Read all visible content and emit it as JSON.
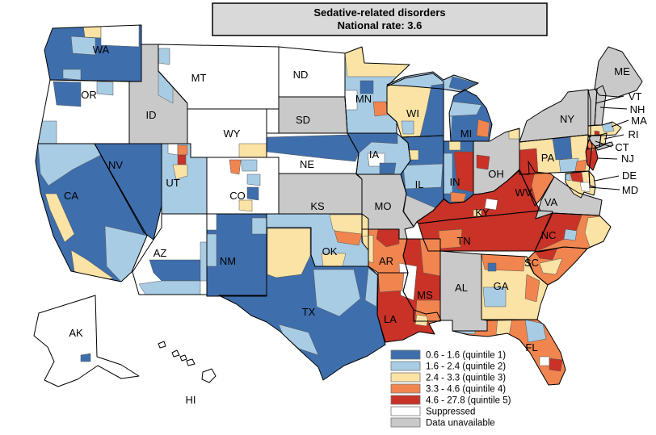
{
  "title": {
    "line1": "Sedative-related disorders",
    "line2": "National rate: 3.6"
  },
  "colors": {
    "q1": "#3F6EAC",
    "q2": "#A8CCE4",
    "q3": "#FBE3A5",
    "q4": "#F0854F",
    "q5": "#C83227",
    "suppressed": "#FFFFFF",
    "unavailable": "#C9C9C9",
    "border": "#000000",
    "title_box_bg": "#D9D9D9"
  },
  "legend": {
    "items": [
      {
        "label": "0.6 - 1.6 (quintile 1)",
        "color_key": "q1"
      },
      {
        "label": "1.6 - 2.4 (quintile 2)",
        "color_key": "q2"
      },
      {
        "label": "2.4 - 3.3 (quintile 3)",
        "color_key": "q3"
      },
      {
        "label": "3.3 - 4.6 (quintile 4)",
        "color_key": "q4"
      },
      {
        "label": "4.6 - 27.8 (quintile 5)",
        "color_key": "q5"
      },
      {
        "label": "Suppressed",
        "color_key": "suppressed"
      },
      {
        "label": "Data unavailable",
        "color_key": "unavailable"
      }
    ]
  },
  "chart_data": {
    "type": "heatmap",
    "title": "Sedative-related disorders",
    "subtitle": "National rate: 3.6",
    "national_rate": 3.6,
    "legend_position": "bottom-center",
    "bins": [
      {
        "range": "0.6 - 1.6",
        "quintile": 1
      },
      {
        "range": "1.6 - 2.4",
        "quintile": 2
      },
      {
        "range": "2.4 - 3.3",
        "quintile": 3
      },
      {
        "range": "3.3 - 4.6",
        "quintile": 4
      },
      {
        "range": "4.6 - 27.8",
        "quintile": 5
      },
      {
        "range": "Suppressed",
        "quintile": null
      },
      {
        "range": "Data unavailable",
        "quintile": null
      }
    ],
    "state_dominant_quintile": {
      "WA": "q1",
      "OR": "suppressed",
      "ID": "unavailable",
      "MT": "suppressed",
      "ND": "suppressed",
      "SD": "unavailable",
      "WY": "suppressed",
      "NE": "suppressed",
      "KS": "unavailable",
      "OK": "q2",
      "TX": "q1",
      "NM": "q1",
      "AZ": "suppressed",
      "UT": "q2",
      "CO": "suppressed",
      "NV": "q1",
      "CA": "q1",
      "MN": "q2",
      "IA": "q2",
      "MO": "unavailable",
      "AR": "q4",
      "LA": "q5",
      "WI": "q3",
      "IL": "q1",
      "MS": "q5",
      "MI": "q1",
      "IN": "q1",
      "OH": "unavailable",
      "KY": "q5",
      "TN": "q5",
      "WV": "q5",
      "VA": "unavailable",
      "NC": "q4",
      "SC": "q4",
      "GA": "q3",
      "AL": "unavailable",
      "FL": "q4",
      "NY": "unavailable",
      "PA": "q3",
      "ME": "unavailable",
      "VT": "unavailable",
      "NH": "unavailable",
      "MA": "q3",
      "RI": "q3",
      "CT": "unavailable",
      "NJ": "q5",
      "DE": "q3",
      "MD": "q3",
      "AK": "suppressed",
      "HI": "suppressed"
    }
  },
  "map": {
    "states": [
      {
        "id": "WA",
        "label": "WA",
        "quintile": "q1"
      },
      {
        "id": "OR",
        "label": "OR",
        "quintile": "suppressed"
      },
      {
        "id": "ID",
        "label": "ID",
        "quintile": "unavailable"
      },
      {
        "id": "MT",
        "label": "MT",
        "quintile": "suppressed"
      },
      {
        "id": "ND",
        "label": "ND",
        "quintile": "suppressed"
      },
      {
        "id": "SD",
        "label": "SD",
        "quintile": "unavailable"
      },
      {
        "id": "WY",
        "label": "WY",
        "quintile": "suppressed"
      },
      {
        "id": "NE",
        "label": "NE",
        "quintile": "suppressed"
      },
      {
        "id": "KS",
        "label": "KS",
        "quintile": "unavailable"
      },
      {
        "id": "OK",
        "label": "OK",
        "quintile": "q2"
      },
      {
        "id": "TX",
        "label": "TX",
        "quintile": "q1"
      },
      {
        "id": "NM",
        "label": "NM",
        "quintile": "q1"
      },
      {
        "id": "AZ",
        "label": "AZ",
        "quintile": "suppressed"
      },
      {
        "id": "UT",
        "label": "UT",
        "quintile": "q2"
      },
      {
        "id": "CO",
        "label": "CO",
        "quintile": "suppressed"
      },
      {
        "id": "NV",
        "label": "NV",
        "quintile": "q1"
      },
      {
        "id": "CA",
        "label": "CA",
        "quintile": "q1"
      },
      {
        "id": "MN",
        "label": "MN",
        "quintile": "q2"
      },
      {
        "id": "IA",
        "label": "IA",
        "quintile": "q2"
      },
      {
        "id": "MO",
        "label": "MO",
        "quintile": "unavailable"
      },
      {
        "id": "AR",
        "label": "AR",
        "quintile": "q4"
      },
      {
        "id": "LA",
        "label": "LA",
        "quintile": "q5"
      },
      {
        "id": "WI",
        "label": "WI",
        "quintile": "q3"
      },
      {
        "id": "IL",
        "label": "IL",
        "quintile": "q1"
      },
      {
        "id": "MS",
        "label": "MS",
        "quintile": "q5"
      },
      {
        "id": "MIUP",
        "label": "",
        "quintile": "q2"
      },
      {
        "id": "MI",
        "label": "MI",
        "quintile": "q1"
      },
      {
        "id": "IN",
        "label": "IN",
        "quintile": "q1"
      },
      {
        "id": "OH",
        "label": "OH",
        "quintile": "unavailable"
      },
      {
        "id": "KY",
        "label": "KY",
        "quintile": "q5"
      },
      {
        "id": "TN",
        "label": "TN",
        "quintile": "q5"
      },
      {
        "id": "WV",
        "label": "WV",
        "quintile": "q5"
      },
      {
        "id": "VA",
        "label": "VA",
        "quintile": "unavailable"
      },
      {
        "id": "NC",
        "label": "NC",
        "quintile": "q4"
      },
      {
        "id": "SC",
        "label": "SC",
        "quintile": "q4"
      },
      {
        "id": "GA",
        "label": "GA",
        "quintile": "q3"
      },
      {
        "id": "AL",
        "label": "AL",
        "quintile": "unavailable"
      },
      {
        "id": "FL",
        "label": "FL",
        "quintile": "q4"
      },
      {
        "id": "NY",
        "label": "NY",
        "quintile": "unavailable"
      },
      {
        "id": "PA",
        "label": "PA",
        "quintile": "q3"
      },
      {
        "id": "ME",
        "label": "ME",
        "quintile": "unavailable"
      },
      {
        "id": "VT",
        "label": "",
        "quintile": "unavailable"
      },
      {
        "id": "NH",
        "label": "",
        "quintile": "unavailable"
      },
      {
        "id": "MA",
        "label": "",
        "quintile": "q3"
      },
      {
        "id": "CT",
        "label": "",
        "quintile": "unavailable"
      },
      {
        "id": "RI",
        "label": "",
        "quintile": "q3"
      },
      {
        "id": "NJ",
        "label": "",
        "quintile": "q5"
      },
      {
        "id": "DE",
        "label": "",
        "quintile": "q3"
      },
      {
        "id": "MD",
        "label": "",
        "quintile": "q3"
      },
      {
        "id": "LI",
        "label": "",
        "quintile": "unavailable"
      },
      {
        "id": "AK",
        "label": "AK",
        "quintile": "suppressed"
      },
      {
        "id": "HI",
        "label": "HI",
        "quintile": "suppressed"
      }
    ],
    "patches": [
      {
        "id": "WA-p1",
        "state": "WA",
        "quintile": "q3"
      },
      {
        "id": "WA-p2",
        "state": "WA",
        "quintile": "suppressed"
      },
      {
        "id": "WA-p3",
        "state": "WA",
        "quintile": "q2"
      },
      {
        "id": "WA-p4",
        "state": "WA",
        "quintile": "q2"
      },
      {
        "id": "OR-p1",
        "state": "OR",
        "quintile": "q1"
      },
      {
        "id": "OR-p2",
        "state": "OR",
        "quintile": "q2"
      },
      {
        "id": "OR-p3",
        "state": "OR",
        "quintile": "q2"
      },
      {
        "id": "ID-p1",
        "state": "ID",
        "quintile": "q2"
      },
      {
        "id": "MT-p1",
        "state": "MT",
        "quintile": "q2"
      },
      {
        "id": "WY-p1",
        "state": "WY",
        "quintile": "q3"
      },
      {
        "id": "UT-p1",
        "state": "UT",
        "quintile": "suppressed"
      },
      {
        "id": "UT-p2",
        "state": "UT",
        "quintile": "q4"
      },
      {
        "id": "UT-p3",
        "state": "UT",
        "quintile": "q5"
      },
      {
        "id": "UT-p4",
        "state": "UT",
        "quintile": "q3"
      },
      {
        "id": "CO-p1",
        "state": "CO",
        "quintile": "q4"
      },
      {
        "id": "CO-p2",
        "state": "CO",
        "quintile": "q2"
      },
      {
        "id": "CO-p3",
        "state": "CO",
        "quintile": "q2"
      },
      {
        "id": "CO-p4",
        "state": "CO",
        "quintile": "q1"
      },
      {
        "id": "CO-p5",
        "state": "CO",
        "quintile": "q3"
      },
      {
        "id": "AZ-p1",
        "state": "AZ",
        "quintile": "q1"
      },
      {
        "id": "AZ-p2",
        "state": "AZ",
        "quintile": "q2"
      },
      {
        "id": "AZ-p3",
        "state": "AZ",
        "quintile": "q2"
      },
      {
        "id": "NM-p1",
        "state": "NM",
        "quintile": "q2"
      },
      {
        "id": "NM-p2",
        "state": "NM",
        "quintile": "q2"
      },
      {
        "id": "NM-p3",
        "state": "NM",
        "quintile": "suppressed"
      },
      {
        "id": "CA-p1",
        "state": "CA",
        "quintile": "q2"
      },
      {
        "id": "CA-p2",
        "state": "CA",
        "quintile": "q3"
      },
      {
        "id": "CA-p3",
        "state": "CA",
        "quintile": "q3"
      },
      {
        "id": "CA-p4",
        "state": "CA",
        "quintile": "q2"
      },
      {
        "id": "NE-p1",
        "state": "NE",
        "quintile": "q1"
      },
      {
        "id": "MN-p1",
        "state": "MN",
        "quintile": "q3"
      },
      {
        "id": "MN-p2",
        "state": "MN",
        "quintile": "q4"
      },
      {
        "id": "MN-p3",
        "state": "MN",
        "quintile": "suppressed"
      },
      {
        "id": "MN-p4",
        "state": "MN",
        "quintile": "q1"
      },
      {
        "id": "IA-p1",
        "state": "IA",
        "quintile": "q1"
      },
      {
        "id": "IA-p2",
        "state": "IA",
        "quintile": "suppressed"
      },
      {
        "id": "IA-p3",
        "state": "IA",
        "quintile": "q1"
      },
      {
        "id": "WI-p1",
        "state": "WI",
        "quintile": "q1"
      },
      {
        "id": "WI-p2",
        "state": "WI",
        "quintile": "q2"
      },
      {
        "id": "IL-p1",
        "state": "IL",
        "quintile": "q2"
      },
      {
        "id": "IL-p2",
        "state": "IL",
        "quintile": "unavailable"
      },
      {
        "id": "IL-p3",
        "state": "IL",
        "quintile": "q3"
      },
      {
        "id": "MIUP-p1",
        "state": "MIUP",
        "quintile": "q1"
      },
      {
        "id": "MI-p1",
        "state": "MI",
        "quintile": "q2"
      },
      {
        "id": "MI-p2",
        "state": "MI",
        "quintile": "q4"
      },
      {
        "id": "MI-p3",
        "state": "MI",
        "quintile": "q2"
      },
      {
        "id": "IN-p1",
        "state": "IN",
        "quintile": "q2"
      },
      {
        "id": "IN-p2",
        "state": "IN",
        "quintile": "q5"
      },
      {
        "id": "IN-p3",
        "state": "IN",
        "quintile": "q4"
      },
      {
        "id": "IN-p4",
        "state": "IN",
        "quintile": "q3"
      },
      {
        "id": "OH-p1",
        "state": "OH",
        "quintile": "q5"
      },
      {
        "id": "OH-p2",
        "state": "OH",
        "quintile": "q3"
      },
      {
        "id": "KY-p1",
        "state": "KY",
        "quintile": "suppressed"
      },
      {
        "id": "KY-p2",
        "state": "KY",
        "quintile": "q3"
      },
      {
        "id": "TN-p1",
        "state": "TN",
        "quintile": "q4"
      },
      {
        "id": "WV-p1",
        "state": "WV",
        "quintile": "q4"
      },
      {
        "id": "NC-p1",
        "state": "NC",
        "quintile": "q5"
      },
      {
        "id": "NC-p2",
        "state": "NC",
        "quintile": "q3"
      },
      {
        "id": "NC-p3",
        "state": "NC",
        "quintile": "q2"
      },
      {
        "id": "SC-p1",
        "state": "SC",
        "quintile": "q5"
      },
      {
        "id": "SC-p2",
        "state": "SC",
        "quintile": "q3"
      },
      {
        "id": "GA-p1",
        "state": "GA",
        "quintile": "q4"
      },
      {
        "id": "GA-p2",
        "state": "GA",
        "quintile": "q1"
      },
      {
        "id": "GA-p3",
        "state": "GA",
        "quintile": "q2"
      },
      {
        "id": "GA-p4",
        "state": "GA",
        "quintile": "q4"
      },
      {
        "id": "MS-p1",
        "state": "MS",
        "quintile": "q4"
      },
      {
        "id": "MS-p2",
        "state": "MS",
        "quintile": "q4"
      },
      {
        "id": "RIV-p1",
        "state": "",
        "quintile": "suppressed"
      },
      {
        "id": "LA-p1",
        "state": "LA",
        "quintile": "q4"
      },
      {
        "id": "LA-p2",
        "state": "LA",
        "quintile": "q3"
      },
      {
        "id": "LA-p3",
        "state": "LA",
        "quintile": "q4"
      },
      {
        "id": "AR-p1",
        "state": "AR",
        "quintile": "q5"
      },
      {
        "id": "AR-p2",
        "state": "AR",
        "quintile": "q3"
      },
      {
        "id": "FL-p1",
        "state": "FL",
        "quintile": "q2"
      },
      {
        "id": "FL-p2",
        "state": "FL",
        "quintile": "q3"
      },
      {
        "id": "FL-p3",
        "state": "FL",
        "quintile": "q2"
      },
      {
        "id": "FL-p4",
        "state": "FL",
        "quintile": "suppressed"
      },
      {
        "id": "FL-p5",
        "state": "FL",
        "quintile": "q5"
      },
      {
        "id": "TX-p1",
        "state": "TX",
        "quintile": "q3"
      },
      {
        "id": "TX-p2",
        "state": "TX",
        "quintile": "q2"
      },
      {
        "id": "TX-p3",
        "state": "TX",
        "quintile": "q2"
      },
      {
        "id": "TX-p4",
        "state": "TX",
        "quintile": "q2"
      },
      {
        "id": "OK-p1",
        "state": "OK",
        "quintile": "q3"
      },
      {
        "id": "OK-p2",
        "state": "OK",
        "quintile": "q4"
      },
      {
        "id": "OK-p3",
        "state": "OK",
        "quintile": "q3"
      },
      {
        "id": "PA-p1",
        "state": "PA",
        "quintile": "q5"
      },
      {
        "id": "PA-p2",
        "state": "PA",
        "quintile": "q1"
      },
      {
        "id": "PA-p3",
        "state": "PA",
        "quintile": "q2"
      },
      {
        "id": "PA-p4",
        "state": "PA",
        "quintile": "q4"
      },
      {
        "id": "NJ-p1",
        "state": "NJ",
        "quintile": "q4"
      },
      {
        "id": "MA-p1",
        "state": "MA",
        "quintile": "q2"
      },
      {
        "id": "MA-p2",
        "state": "MA",
        "quintile": "q5"
      },
      {
        "id": "MD-p1",
        "state": "MD",
        "quintile": "q5"
      },
      {
        "id": "MD-p2",
        "state": "MD",
        "quintile": "suppressed"
      },
      {
        "id": "MD-p3",
        "state": "MD",
        "quintile": "q2"
      },
      {
        "id": "AK-p1",
        "state": "AK",
        "quintile": "q1"
      }
    ],
    "callouts": [
      {
        "id": "VT",
        "label": "VT"
      },
      {
        "id": "NH",
        "label": "NH"
      },
      {
        "id": "MA",
        "label": "MA"
      },
      {
        "id": "RI",
        "label": "RI"
      },
      {
        "id": "CT",
        "label": "CT"
      },
      {
        "id": "NJ",
        "label": "NJ"
      },
      {
        "id": "DE",
        "label": "DE"
      },
      {
        "id": "MD",
        "label": "MD"
      }
    ]
  }
}
